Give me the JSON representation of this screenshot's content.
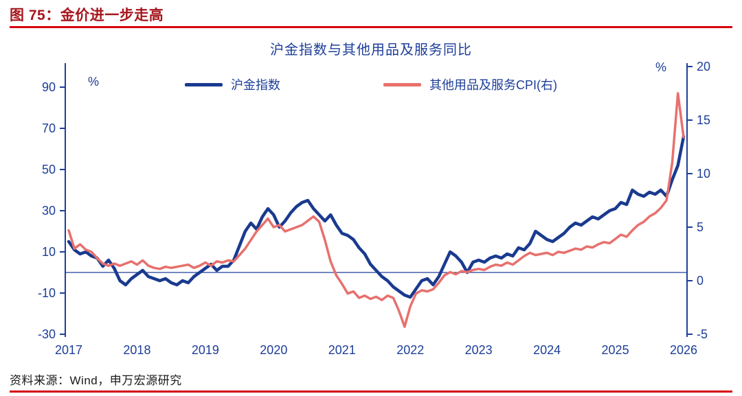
{
  "header": {
    "title": "图 75：金价进一步走高"
  },
  "chart_title": "沪金指数与其他用品及服务同比",
  "legend": [
    {
      "label": "沪金指数",
      "color": "#1a3a8f"
    },
    {
      "label": "其他用品及服务CPI(右)",
      "color": "#e7706d"
    }
  ],
  "footer": {
    "source": "资料来源：Wind，申万宏源研究"
  },
  "colors": {
    "accent_red": "#d7000f",
    "navy": "#1d3e99"
  },
  "chart_data": {
    "type": "line",
    "title": "沪金指数与其他用品及服务同比",
    "axis_color": "#1d3e99",
    "grid": "off",
    "legend_position": "top",
    "x_axis": {
      "min": 2017,
      "max": 2026,
      "step": 0.0833333,
      "ticks": [
        2017,
        2018,
        2019,
        2020,
        2021,
        2022,
        2023,
        2024,
        2025,
        2026
      ]
    },
    "left_axis": {
      "unit": "%",
      "min": -30,
      "max": 90,
      "ticks": [
        90,
        70,
        50,
        30,
        10,
        -10,
        -30
      ]
    },
    "right_axis": {
      "unit": "%",
      "min": -5,
      "max": 20,
      "ticks": [
        20,
        15,
        10,
        5,
        0,
        -5
      ]
    },
    "zero_line": 0,
    "series": [
      {
        "name": "沪金指数",
        "axis": "left",
        "color": "#1a3a8f",
        "width": 4.5,
        "values": [
          15,
          11,
          9,
          10,
          8,
          7,
          3,
          6,
          2,
          -4,
          -6,
          -3,
          -1,
          1,
          -2,
          -3,
          -4,
          -3,
          -5,
          -6,
          -4,
          -5,
          -2,
          0,
          2,
          4,
          1,
          3,
          3,
          6,
          13,
          20,
          24,
          21,
          27,
          31,
          28,
          22,
          25,
          29,
          32,
          34,
          35,
          31,
          28,
          25,
          28,
          23,
          19,
          18,
          16,
          12,
          9,
          4,
          1,
          -2,
          -4,
          -7,
          -9,
          -11,
          -12,
          -8,
          -4,
          -3,
          -6,
          -2,
          4,
          10,
          8,
          5,
          0,
          5,
          6,
          5,
          7,
          8,
          7,
          9,
          8,
          12,
          11,
          14,
          20,
          18,
          16,
          15,
          17,
          19,
          22,
          24,
          23,
          25,
          27,
          26,
          28,
          30,
          31,
          34,
          33,
          40,
          38,
          37,
          39,
          38,
          40,
          37,
          45,
          52,
          66
        ]
      },
      {
        "name": "其他用品及服务CPI(右)",
        "axis": "right",
        "color": "#e7706d",
        "width": 3.5,
        "values": [
          4.7,
          3.0,
          3.4,
          2.9,
          2.7,
          2.1,
          1.6,
          1.4,
          1.6,
          1.4,
          1.6,
          1.8,
          1.5,
          1.9,
          1.4,
          1.2,
          1.1,
          1.3,
          1.2,
          1.3,
          1.4,
          1.5,
          1.2,
          1.4,
          1.7,
          1.4,
          1.8,
          1.7,
          1.9,
          1.8,
          2.4,
          3.0,
          3.8,
          4.6,
          5.2,
          5.8,
          5.0,
          5.2,
          4.6,
          4.8,
          5.0,
          5.2,
          5.6,
          6.0,
          5.5,
          3.8,
          1.8,
          0.5,
          -0.3,
          -1.2,
          -1.0,
          -1.6,
          -1.4,
          -1.7,
          -1.5,
          -1.8,
          -1.4,
          -1.6,
          -2.8,
          -4.3,
          -2.4,
          -1.2,
          -0.9,
          -1.0,
          -0.8,
          -0.2,
          0.5,
          0.8,
          0.6,
          0.9,
          0.8,
          1.0,
          1.1,
          1.0,
          1.3,
          1.5,
          1.4,
          1.7,
          1.5,
          1.9,
          2.3,
          2.6,
          2.4,
          2.5,
          2.6,
          2.4,
          2.7,
          2.6,
          2.8,
          3.0,
          2.9,
          3.2,
          3.1,
          3.4,
          3.6,
          3.5,
          3.9,
          4.3,
          4.1,
          4.7,
          5.2,
          5.5,
          6.0,
          6.3,
          6.8,
          7.5,
          11.0,
          17.5,
          13.4
        ]
      }
    ]
  }
}
